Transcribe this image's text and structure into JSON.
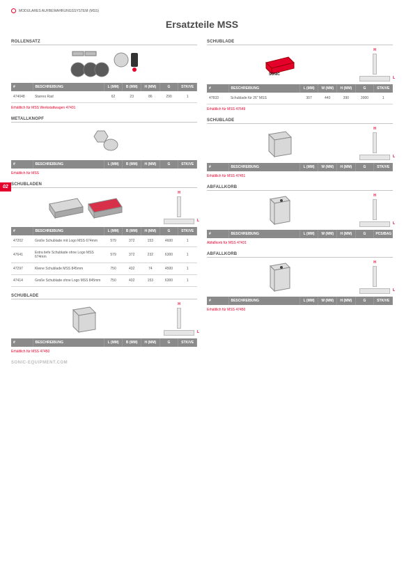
{
  "page": {
    "tab": "02",
    "category": "MODULARES AUFBEWAHRUNGSSYSTEM (MSS)",
    "title": "Ersatzteile MSS",
    "footer": "SONIC-EQUIPMENT.COM"
  },
  "cols_left": [
    "L (MM)",
    "B (MM)",
    "H (MM)",
    "G",
    "STK/VE"
  ],
  "cols_right": [
    "L (MM)",
    "W (MM)",
    "H (MM)",
    "G",
    "STK/VE"
  ],
  "cols_bag": [
    "L (MM)",
    "W (MM)",
    "H (MM)",
    "G",
    "PCS/BAG"
  ],
  "labels": {
    "id": "#",
    "desc": "BESCHREIBUNG"
  },
  "left": [
    {
      "title": "ROLLENSATZ",
      "dimbox": false,
      "rows": [
        {
          "id": "474048",
          "desc": "Starres Rad",
          "v": [
            "62",
            "23",
            "86",
            "290",
            "1"
          ]
        }
      ],
      "note": "Erhältlich für MSS Werkstattwagen 47431"
    },
    {
      "title": "METALLKNOPF",
      "dimbox": false,
      "rows": [],
      "note": "Erhältlich für MSS"
    },
    {
      "title": "SCHUBLADEN",
      "dimbox": true,
      "rows": [
        {
          "id": "47202",
          "desc": "Große Schublade mit Logo MSS 674mm",
          "v": [
            "579",
            "372",
            "153",
            "4600",
            "1"
          ]
        },
        {
          "id": "47641",
          "desc": "Extra tiefe Schublade ohne Logo MSS 674mm",
          "v": [
            "579",
            "372",
            "232",
            "6300",
            "1"
          ]
        },
        {
          "id": "47297",
          "desc": "Kleine Schublade MSS 845mm",
          "v": [
            "750",
            "432",
            "74",
            "4500",
            "1"
          ]
        },
        {
          "id": "47414",
          "desc": "Große Schublade ohne Logo MSS 845mm",
          "v": [
            "750",
            "432",
            "153",
            "6300",
            "1"
          ]
        }
      ],
      "note": ""
    },
    {
      "title": "SCHUBLADE",
      "dimbox": true,
      "rows": [],
      "note": "Erhältlich für MSS 47450"
    }
  ],
  "right": [
    {
      "title": "SCHUBLADE",
      "dimbox": true,
      "rows": [
        {
          "id": "47833",
          "desc": "Schublade für 26\" MSS",
          "v": [
            "307",
            "440",
            "390",
            "3900",
            "1"
          ]
        }
      ],
      "note": "Erhältlich für MSS 47649"
    },
    {
      "title": "SCHUBLADE",
      "dimbox": true,
      "rows": [],
      "note": "Erhältlich für MSS 47451"
    },
    {
      "title": "ABFALLKORB",
      "dimbox": true,
      "cols": "bag",
      "rows": [],
      "note": "Abfallkorb für MSS 47431"
    },
    {
      "title": "ABFALLKORB",
      "dimbox": true,
      "rows": [],
      "note": "Erhältlich für MSS 47450"
    }
  ],
  "colors": {
    "accent": "#e4002b",
    "thead": "#8a8a8a"
  }
}
